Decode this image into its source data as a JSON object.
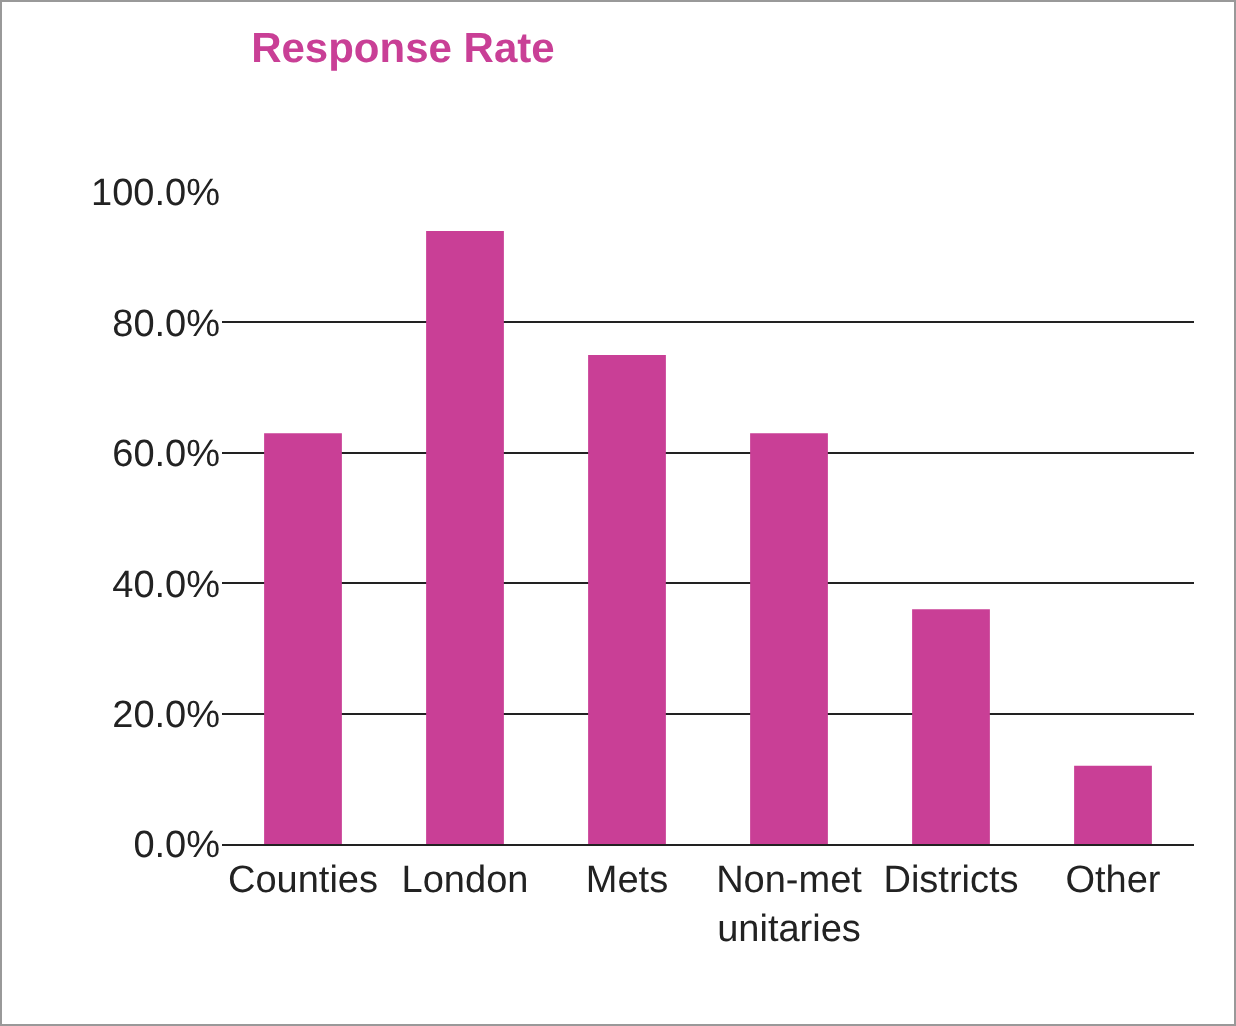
{
  "chart_data": {
    "type": "bar",
    "title": "Response Rate",
    "categories": [
      "Counties",
      "London",
      "Mets",
      "Non-met unitaries",
      "Districts",
      "Other"
    ],
    "values": [
      63,
      94,
      75,
      63,
      36,
      12
    ],
    "color": "#c93f96",
    "ylim": [
      0,
      100
    ],
    "yticks": [
      {
        "value": 0,
        "label": "0.0%"
      },
      {
        "value": 20,
        "label": "20.0%"
      },
      {
        "value": 40,
        "label": "40.0%"
      },
      {
        "value": 60,
        "label": "60.0%"
      },
      {
        "value": 80,
        "label": "80.0%"
      },
      {
        "value": 100,
        "label": "100.0%"
      }
    ],
    "grid": "y",
    "legend": false
  }
}
